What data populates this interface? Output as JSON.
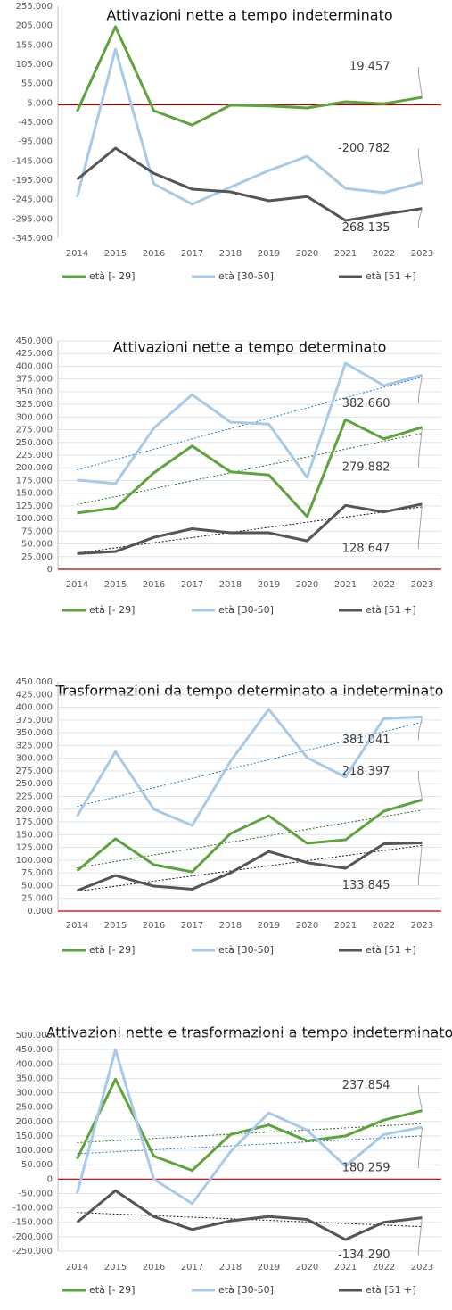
{
  "chart_data": [
    {
      "type": "line",
      "title": "Attivazioni nette a tempo indeterminato",
      "categories": [
        "2014",
        "2015",
        "2016",
        "2017",
        "2018",
        "2019",
        "2020",
        "2021",
        "2022",
        "2023"
      ],
      "series": [
        {
          "name": "età [- 29]",
          "color": "#5ea33b",
          "values": [
            -17000,
            202000,
            -15000,
            -52000,
            -1000,
            -3000,
            -8000,
            8000,
            3000,
            19457
          ],
          "value_labels": [
            null,
            null,
            null,
            null,
            null,
            null,
            null,
            null,
            null,
            "19.457"
          ]
        },
        {
          "name": "età [30-50]",
          "color": "#a9c9e8",
          "values": [
            -239000,
            144000,
            -204000,
            -257000,
            -213000,
            -170000,
            -133000,
            -216000,
            -227000,
            -200782
          ],
          "value_labels": [
            null,
            null,
            null,
            null,
            null,
            null,
            null,
            null,
            null,
            "-200.782"
          ]
        },
        {
          "name": "età [51 +]",
          "color": "#555555",
          "values": [
            -193000,
            -112000,
            -177000,
            -218000,
            -225000,
            -248000,
            -237000,
            -299000,
            -283000,
            -268135
          ],
          "value_labels": [
            null,
            null,
            null,
            null,
            null,
            null,
            null,
            null,
            null,
            "-268.135"
          ]
        }
      ],
      "ylim": [
        -345000,
        255000
      ],
      "yticks": [
        {
          "value": 255000,
          "label": "255.000"
        },
        {
          "value": 205000,
          "label": "205.000"
        },
        {
          "value": 155000,
          "label": "155.000"
        },
        {
          "value": 105000,
          "label": "105.000"
        },
        {
          "value": 55000,
          "label": "55.000"
        },
        {
          "value": 5000,
          "label": "5.000"
        },
        {
          "value": -45000,
          "label": "-45.000"
        },
        {
          "value": -95000,
          "label": "-95.000"
        },
        {
          "value": -145000,
          "label": "-145.000"
        },
        {
          "value": -195000,
          "label": "-195.000"
        },
        {
          "value": -245000,
          "label": "-245.000"
        },
        {
          "value": -295000,
          "label": "-295.000"
        },
        {
          "value": -345000,
          "label": "-345.000"
        }
      ],
      "grid": false,
      "trendline": false
    },
    {
      "type": "line",
      "title": "Attivazioni nette a tempo determinato",
      "categories": [
        "2014",
        "2015",
        "2016",
        "2017",
        "2018",
        "2019",
        "2020",
        "2021",
        "2022",
        "2023"
      ],
      "series": [
        {
          "name": "età [- 29]",
          "color": "#5ea33b",
          "values": [
            111000,
            121000,
            190000,
            243000,
            192000,
            186000,
            104000,
            295000,
            257000,
            279882
          ],
          "value_labels": [
            null,
            null,
            null,
            null,
            null,
            null,
            null,
            null,
            null,
            "279.882"
          ]
        },
        {
          "name": "età [30-50]",
          "color": "#a9c9e8",
          "values": [
            176000,
            169000,
            278000,
            344000,
            290000,
            286000,
            181000,
            406000,
            362000,
            382660
          ],
          "value_labels": [
            null,
            null,
            null,
            null,
            null,
            null,
            null,
            null,
            null,
            "382.660"
          ]
        },
        {
          "name": "età [51 +]",
          "color": "#555555",
          "values": [
            31000,
            35000,
            63000,
            80000,
            72000,
            72000,
            56000,
            126000,
            113000,
            128647
          ],
          "value_labels": [
            null,
            null,
            null,
            null,
            null,
            null,
            null,
            null,
            null,
            "128.647"
          ]
        }
      ],
      "ylim": [
        0,
        450000
      ],
      "yticks": [
        {
          "value": 450000,
          "label": "450.000"
        },
        {
          "value": 425000,
          "label": "425.000"
        },
        {
          "value": 400000,
          "label": "400.000"
        },
        {
          "value": 375000,
          "label": "375.000"
        },
        {
          "value": 350000,
          "label": "350.000"
        },
        {
          "value": 325000,
          "label": "325.000"
        },
        {
          "value": 300000,
          "label": "300.000"
        },
        {
          "value": 275000,
          "label": "275.000"
        },
        {
          "value": 250000,
          "label": "250.000"
        },
        {
          "value": 225000,
          "label": "225.000"
        },
        {
          "value": 200000,
          "label": "200.000"
        },
        {
          "value": 175000,
          "label": "175.000"
        },
        {
          "value": 150000,
          "label": "150.000"
        },
        {
          "value": 125000,
          "label": "125.000"
        },
        {
          "value": 100000,
          "label": "100.000"
        },
        {
          "value": 75000,
          "label": "75.000"
        },
        {
          "value": 50000,
          "label": "50.000"
        },
        {
          "value": 25000,
          "label": "25.000"
        },
        0
      ],
      "grid": true,
      "trendline": true
    },
    {
      "type": "line",
      "title": "Trasformazioni da tempo determinato a indeterminato",
      "categories": [
        "2014",
        "2015",
        "2016",
        "2017",
        "2018",
        "2019",
        "2020",
        "2021",
        "2022",
        "2023"
      ],
      "series": [
        {
          "name": "età [- 29]",
          "color": "#5ea33b",
          "values": [
            79000,
            142000,
            91000,
            77000,
            152000,
            187000,
            133000,
            140000,
            196000,
            218397
          ],
          "value_labels": [
            null,
            null,
            null,
            null,
            null,
            null,
            null,
            null,
            null,
            "218.397"
          ]
        },
        {
          "name": "età [30-50]",
          "color": "#a9c9e8",
          "values": [
            186000,
            313000,
            200000,
            168000,
            294000,
            396000,
            301000,
            263000,
            378000,
            381041
          ],
          "value_labels": [
            null,
            null,
            null,
            null,
            null,
            null,
            null,
            null,
            null,
            "381.041"
          ]
        },
        {
          "name": "età [51 +]",
          "color": "#555555",
          "values": [
            40000,
            70000,
            49000,
            43000,
            75000,
            117000,
            95000,
            84000,
            132000,
            133845
          ],
          "value_labels": [
            null,
            null,
            null,
            null,
            null,
            null,
            null,
            null,
            null,
            "133.845"
          ]
        }
      ],
      "ylim": [
        0,
        450000
      ],
      "yticks": [
        {
          "value": 450000,
          "label": "450.000"
        },
        {
          "value": 425000,
          "label": "425.000"
        },
        {
          "value": 400000,
          "label": "400.000"
        },
        {
          "value": 375000,
          "label": "375.000"
        },
        {
          "value": 350000,
          "label": "350.000"
        },
        {
          "value": 325000,
          "label": "325.000"
        },
        {
          "value": 300000,
          "label": "300.000"
        },
        {
          "value": 275000,
          "label": "275.000"
        },
        {
          "value": 250000,
          "label": "250.000"
        },
        {
          "value": 225000,
          "label": "225.000"
        },
        {
          "value": 200000,
          "label": "200.000"
        },
        {
          "value": 175000,
          "label": "175.000"
        },
        {
          "value": 150000,
          "label": "150.000"
        },
        {
          "value": 125000,
          "label": "125.000"
        },
        {
          "value": 100000,
          "label": "100.000"
        },
        {
          "value": 75000,
          "label": "75.000"
        },
        {
          "value": 50000,
          "label": "50.000"
        },
        {
          "value": 25000,
          "label": "25.000"
        },
        {
          "value": 0,
          "label": "0.000"
        }
      ],
      "grid": true,
      "trendline": true
    },
    {
      "type": "line",
      "title": "Attivazioni nette e trasformazioni a tempo indeterminato",
      "categories": [
        "2014",
        "2015",
        "2016",
        "2017",
        "2018",
        "2019",
        "2020",
        "2021",
        "2022",
        "2023"
      ],
      "series": [
        {
          "name": "età [- 29]",
          "color": "#5ea33b",
          "values": [
            70000,
            347000,
            80000,
            30000,
            155000,
            188000,
            133000,
            150000,
            205000,
            237854
          ],
          "value_labels": [
            null,
            null,
            null,
            null,
            null,
            null,
            null,
            null,
            null,
            "237.854"
          ]
        },
        {
          "name": "età [30-50]",
          "color": "#a9c9e8",
          "values": [
            -50000,
            450000,
            0,
            -85000,
            95000,
            230000,
            170000,
            45000,
            155000,
            180259
          ],
          "value_labels": [
            null,
            null,
            null,
            null,
            null,
            null,
            null,
            null,
            null,
            "180.259"
          ]
        },
        {
          "name": "età [51 +]",
          "color": "#555555",
          "values": [
            -150000,
            -40000,
            -130000,
            -175000,
            -145000,
            -130000,
            -140000,
            -210000,
            -150000,
            -134290
          ],
          "value_labels": [
            null,
            null,
            null,
            null,
            null,
            null,
            null,
            null,
            null,
            "-134.290"
          ]
        }
      ],
      "ylim": [
        -250000,
        500000
      ],
      "yticks": [
        {
          "value": 500000,
          "label": "500.000"
        },
        {
          "value": 450000,
          "label": "450.000"
        },
        {
          "value": 400000,
          "label": "400.000"
        },
        {
          "value": 350000,
          "label": "350.000"
        },
        {
          "value": 300000,
          "label": "300.000"
        },
        {
          "value": 250000,
          "label": "250.000"
        },
        {
          "value": 200000,
          "label": "200.000"
        },
        {
          "value": 150000,
          "label": "150.000"
        },
        {
          "value": 100000,
          "label": "100.000"
        },
        {
          "value": 50000,
          "label": "50.000"
        },
        0,
        {
          "value": -50000,
          "label": "-50.000"
        },
        {
          "value": -100000,
          "label": "-100.000"
        },
        {
          "value": -150000,
          "label": "-150.000"
        },
        {
          "value": -200000,
          "label": "-200.000"
        },
        {
          "value": -250000,
          "label": "-250.000"
        }
      ],
      "grid": true,
      "trendline": true
    }
  ]
}
